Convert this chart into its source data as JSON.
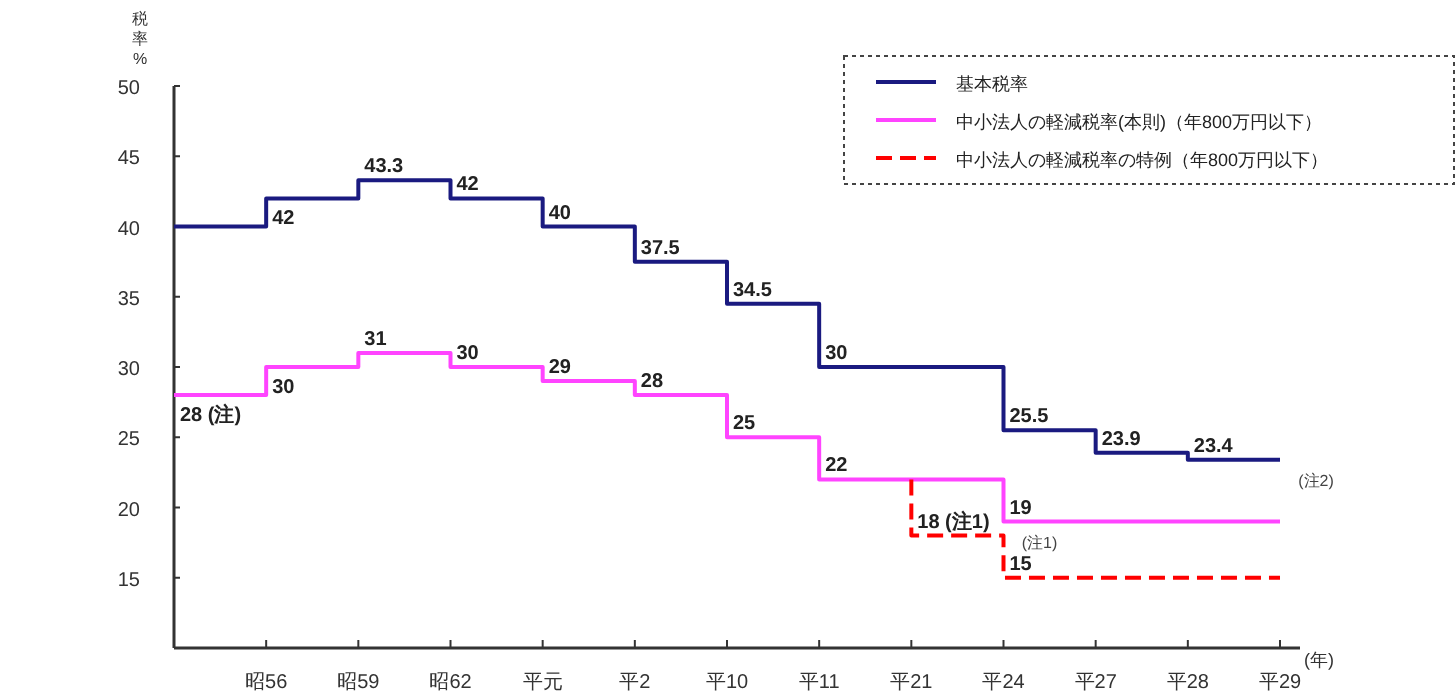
{
  "chart_data": {
    "type": "step",
    "ylabel": "税率 %",
    "xlabel": "(年)",
    "categories": [
      null,
      "昭56",
      "昭59",
      "昭62",
      "平元",
      "平2",
      "平10",
      "平11",
      "平21",
      "平24",
      "平27",
      "平28",
      "平29"
    ],
    "ylim": [
      10,
      50
    ],
    "yticks": [
      15,
      20,
      25,
      30,
      35,
      40,
      45,
      50
    ],
    "series": [
      {
        "name": "基本税率",
        "color": "#1a1a80",
        "line_style": "solid",
        "values": [
          40,
          42,
          43.3,
          42,
          40,
          37.5,
          34.5,
          30,
          30,
          25.5,
          23.9,
          23.4,
          23.4
        ],
        "value_labels": [
          null,
          "42",
          "43.3",
          "42",
          "40",
          "37.5",
          "34.5",
          "30",
          null,
          "25.5",
          "23.9",
          "23.4",
          null
        ]
      },
      {
        "name": "中小法人の軽減税率(本則)（年800万円以下）",
        "color": "#ff44ff",
        "line_style": "solid",
        "values": [
          28,
          30,
          31,
          30,
          29,
          28,
          25,
          22,
          22,
          19,
          19,
          19,
          19
        ],
        "value_labels": [
          "28 (注)",
          "30",
          "31",
          "30",
          "29",
          "28",
          "25",
          "22",
          null,
          "19",
          null,
          null,
          null
        ]
      },
      {
        "name": "中小法人の軽減税率の特例（年800万円以下）",
        "color": "#ff0000",
        "line_style": "dashed",
        "x": [
          "平21",
          "平21",
          "平24",
          "平29"
        ],
        "values": [
          22,
          18,
          15,
          15
        ],
        "value_labels": [
          null,
          "18 (注1)",
          "15",
          null
        ]
      }
    ],
    "annotations": [
      {
        "text": "(注1)",
        "x": "平24",
        "y": 19
      },
      {
        "text": "(注2)",
        "x": "平29",
        "y": 23.4
      }
    ],
    "legend": "top right",
    "grid": false
  }
}
